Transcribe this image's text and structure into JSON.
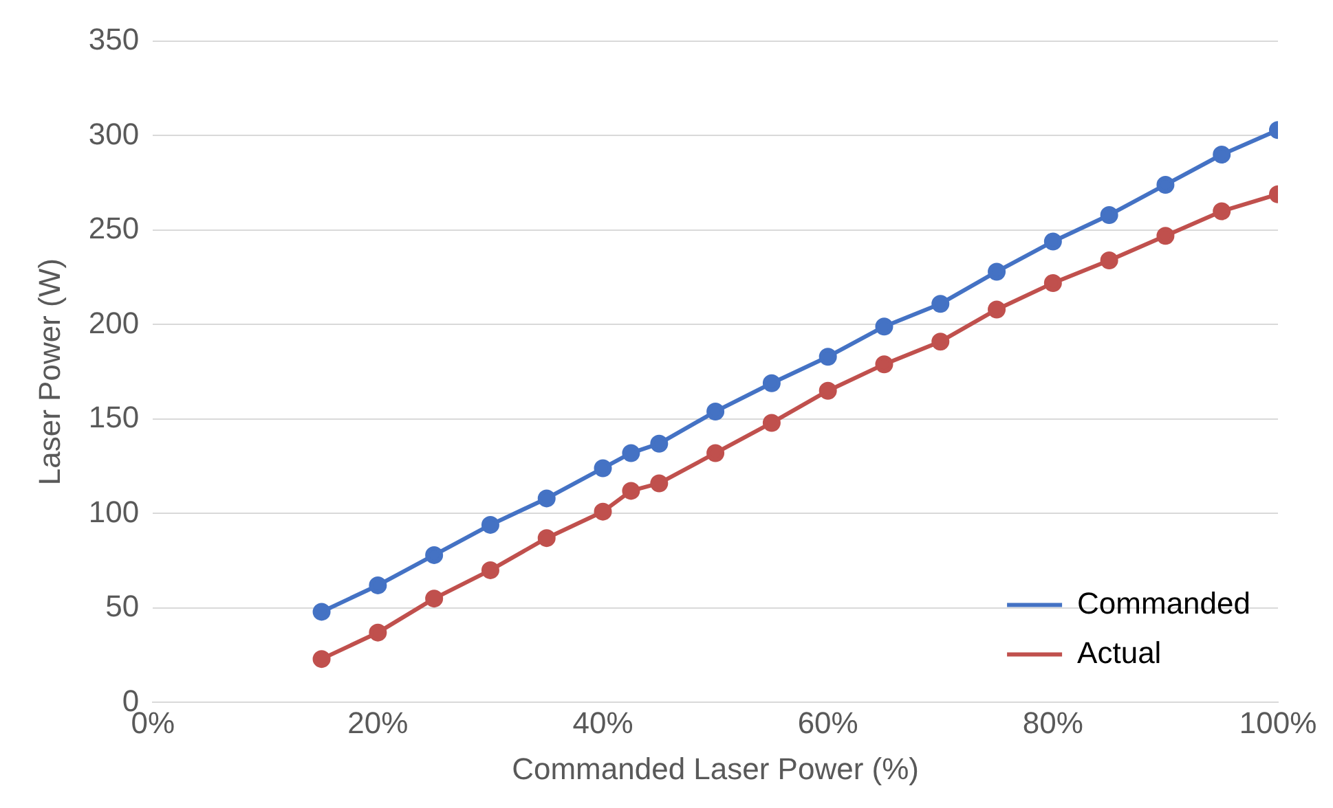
{
  "chart_data": {
    "type": "line",
    "xlabel": "Commanded Laser Power (%)",
    "ylabel": "Laser Power (W)",
    "x": [
      15,
      20,
      25,
      30,
      35,
      40,
      42.5,
      45,
      50,
      55,
      60,
      65,
      70,
      75,
      80,
      85,
      90,
      95,
      100
    ],
    "series": [
      {
        "name": "Commanded",
        "color": "#4472c4",
        "values": [
          48,
          62,
          78,
          94,
          108,
          124,
          132,
          137,
          154,
          169,
          183,
          199,
          211,
          228,
          244,
          258,
          274,
          290,
          303
        ]
      },
      {
        "name": "Actual",
        "color": "#c0504d",
        "values": [
          23,
          37,
          55,
          70,
          87,
          101,
          112,
          116,
          132,
          148,
          165,
          179,
          191,
          208,
          222,
          234,
          247,
          260,
          269
        ]
      }
    ],
    "xlim": [
      0,
      100
    ],
    "xticks": [
      {
        "value": 0,
        "label": "0%"
      },
      {
        "value": 20,
        "label": "20%"
      },
      {
        "value": 40,
        "label": "40%"
      },
      {
        "value": 60,
        "label": "60%"
      },
      {
        "value": 80,
        "label": "80%"
      },
      {
        "value": 100,
        "label": "100%"
      }
    ],
    "ylim": [
      0,
      350
    ],
    "yticks": [
      0,
      50,
      100,
      150,
      200,
      250,
      300,
      350
    ],
    "grid": "y",
    "legend": "bottom right",
    "marker": "circle",
    "line_style": "solid"
  }
}
